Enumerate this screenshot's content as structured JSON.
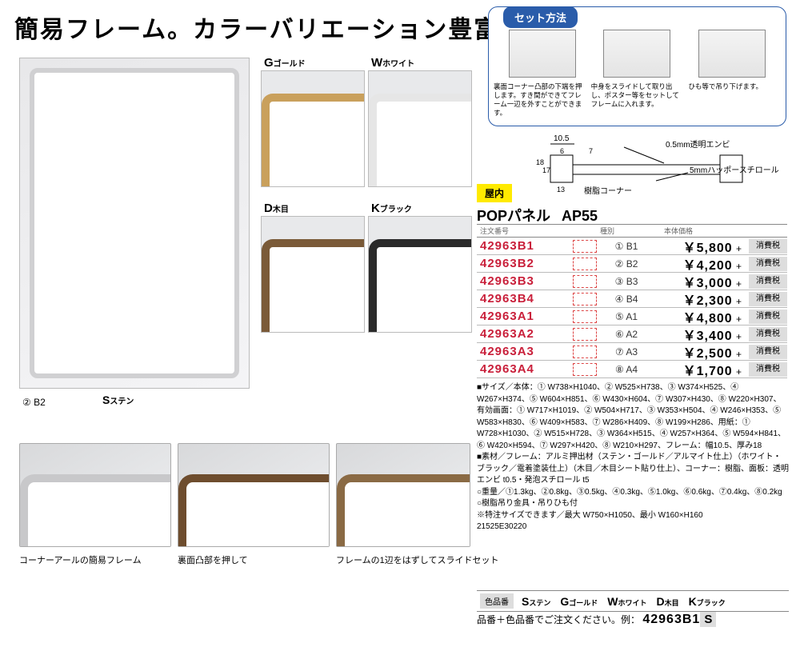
{
  "headline": "簡易フレーム。カラーバリエーション豊富。",
  "main_frame": {
    "caption": "② B2",
    "color_code": "S",
    "color_name": "ステン"
  },
  "swatches": [
    {
      "code": "G",
      "name": "ゴールド",
      "border": "#c9a05c"
    },
    {
      "code": "W",
      "name": "ホワイト",
      "border": "#e6e6e6"
    },
    {
      "code": "D",
      "name": "木目",
      "border": "#7a5a38"
    },
    {
      "code": "K",
      "name": "ブラック",
      "border": "#2a2a2a"
    }
  ],
  "bottom_captions": [
    "コーナーアールの簡易フレーム",
    "裏面凸部を押して",
    "フレームの1辺をはずしてスライドセット"
  ],
  "set_method_title": "セット方法",
  "set_method_captions": [
    "裏面コーナー凸部の下端を押します。すき間ができてフレーム一辺を外すことができます。",
    "中身をスライドして取り出し、ポスター等をセットしてフレームに入れます。",
    "ひも等で吊り下げます。"
  ],
  "diagram_labels": {
    "w": "10.5",
    "a": "6",
    "b": "18",
    "c": "17",
    "d": "13",
    "e": "7",
    "top": "0.5mm透明エンビ",
    "bot": "5mmハッポースチロール",
    "corner": "樹脂コーナー"
  },
  "indoor": "屋内",
  "product_name": "POPパネル",
  "model": "AP55",
  "table_headers": {
    "order": "注文番号",
    "type": "種別",
    "price": "本体価格"
  },
  "tax_label": "消費税",
  "price_plus": "+",
  "rows": [
    {
      "order": "42963B1",
      "type": "① B1",
      "price": "￥5,800"
    },
    {
      "order": "42963B2",
      "type": "② B2",
      "price": "￥4,200"
    },
    {
      "order": "42963B3",
      "type": "③ B3",
      "price": "￥3,000"
    },
    {
      "order": "42963B4",
      "type": "④ B4",
      "price": "￥2,300"
    },
    {
      "order": "42963A1",
      "type": "⑤ A1",
      "price": "￥4,800"
    },
    {
      "order": "42963A2",
      "type": "⑥ A2",
      "price": "￥3,400"
    },
    {
      "order": "42963A3",
      "type": "⑦ A3",
      "price": "￥2,500"
    },
    {
      "order": "42963A4",
      "type": "⑧ A4",
      "price": "￥1,700"
    }
  ],
  "specs": [
    "■サイズ／本体：① W738×H1040、② W525×H738、③ W374×H525、④ W267×H374、⑤ W604×H851、⑥ W430×H604、⑦ W307×H430、⑧ W220×H307、有効画面：① W717×H1019、② W504×H717、③ W353×H504、④ W246×H353、⑤ W583×H830、⑥ W409×H583、⑦ W286×H409、⑧ W199×H286、用紙：① W728×H1030、② W515×H728、③ W364×H515、④ W257×H364、⑤ W594×H841、⑥ W420×H594、⑦ W297×H420、⑧ W210×H297、フレーム：幅10.5、厚み18",
    "■素材／フレーム：アルミ押出材（ステン・ゴールド／アルマイト仕上）（ホワイト・ブラック／電着塗装仕上）（木目／木目シート貼り仕上）、コーナー：樹脂、面板：透明エンビ t0.5・発泡スチロール t5",
    "○重量／①1.3kg、②0.8kg、③0.5kg、④0.3kg、⑤1.0kg、⑥0.6kg、⑦0.4kg、⑧0.2kg",
    "○樹脂吊り金具・吊りひも付",
    "※特注サイズできます／最大 W750×H1050、最小 W160×H160",
    "21525E30220"
  ],
  "color_codes_label": "色品番",
  "color_codes": [
    {
      "code": "S",
      "name": "ステン"
    },
    {
      "code": "G",
      "name": "ゴールド"
    },
    {
      "code": "W",
      "name": "ホワイト"
    },
    {
      "code": "D",
      "name": "木目"
    },
    {
      "code": "K",
      "name": "ブラック"
    }
  ],
  "example_label": "品番＋色品番でご注文ください。例：",
  "example_code": "42963B1",
  "example_suffix": "S"
}
